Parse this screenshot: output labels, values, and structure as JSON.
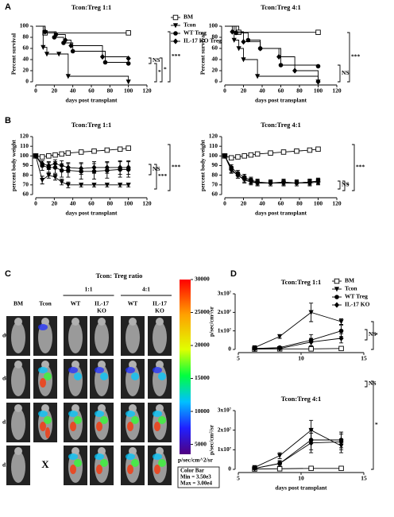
{
  "panels": [
    "A",
    "B",
    "C",
    "D"
  ],
  "chart_data": [
    {
      "type": "step",
      "title": "Tcon:Treg 1:1",
      "xlabel": "days post transplant",
      "ylabel": "Percent survival",
      "xlim": [
        0,
        120
      ],
      "xticks": [
        0,
        20,
        40,
        60,
        80,
        100,
        120
      ],
      "ylim": [
        0,
        100
      ],
      "yticks": [
        0,
        20,
        40,
        60,
        80,
        100
      ],
      "legend": "right",
      "series": [
        {
          "name": "BM",
          "color": "#000",
          "marker": "square-open",
          "x": [
            0,
            10,
            100
          ],
          "values": [
            100,
            88,
            88
          ]
        },
        {
          "name": "Tcon",
          "color": "#000",
          "marker": "triangle-down",
          "x": [
            0,
            8,
            12,
            25,
            35,
            100
          ],
          "values": [
            100,
            62,
            50,
            50,
            10,
            0
          ]
        },
        {
          "name": "WT Treg",
          "color": "#000",
          "marker": "circle",
          "x": [
            0,
            10,
            20,
            30,
            40,
            75,
            100
          ],
          "values": [
            100,
            90,
            80,
            70,
            55,
            35,
            33
          ]
        },
        {
          "name": "IL-17 KO Treg",
          "color": "#000",
          "marker": "diamond",
          "x": [
            0,
            10,
            22,
            32,
            38,
            72,
            100
          ],
          "values": [
            100,
            90,
            85,
            75,
            65,
            45,
            42
          ]
        }
      ],
      "annotations": [
        "NS",
        "*",
        "*",
        "***"
      ]
    },
    {
      "type": "step",
      "title": "Tcon:Treg 4:1",
      "xlabel": "days post transplant",
      "ylabel": "Percent survival",
      "xlim": [
        0,
        120
      ],
      "xticks": [
        0,
        20,
        40,
        60,
        80,
        100,
        120
      ],
      "ylim": [
        0,
        100
      ],
      "yticks": [
        0,
        20,
        40,
        60,
        80,
        100
      ],
      "series": [
        {
          "color": "#000",
          "marker": "square-open",
          "x": [
            0,
            15,
            100
          ],
          "values": [
            100,
            89,
            89
          ]
        },
        {
          "color": "#000",
          "marker": "triangle-down",
          "x": [
            0,
            10,
            15,
            20,
            35,
            100
          ],
          "values": [
            100,
            75,
            60,
            40,
            10,
            0
          ]
        },
        {
          "color": "#000",
          "marker": "circle",
          "x": [
            0,
            12,
            25,
            38,
            60,
            100
          ],
          "values": [
            100,
            88,
            75,
            60,
            30,
            28
          ]
        },
        {
          "color": "#000",
          "marker": "diamond",
          "x": [
            0,
            8,
            20,
            38,
            58,
            75,
            100
          ],
          "values": [
            100,
            90,
            72,
            60,
            45,
            20,
            0
          ]
        }
      ],
      "annotations": [
        "NS",
        "***"
      ]
    },
    {
      "type": "line",
      "title": "Tcon:Treg 1:1",
      "xlabel": "days post transplant",
      "ylabel": "percent body weight",
      "xlim": [
        0,
        120
      ],
      "xticks": [
        0,
        20,
        40,
        60,
        80,
        100,
        120
      ],
      "ylim": [
        60,
        120
      ],
      "yticks": [
        60,
        70,
        80,
        90,
        100,
        110,
        120
      ],
      "x": [
        0,
        7,
        14,
        21,
        28,
        35,
        49,
        63,
        77,
        91,
        100
      ],
      "series": [
        {
          "color": "#000",
          "marker": "square-open",
          "values": [
            100,
            99,
            100,
            101,
            102,
            103,
            104,
            105,
            106,
            107,
            108
          ],
          "errors": [
            0,
            1,
            1,
            1,
            1,
            2,
            2,
            2,
            2,
            2,
            2
          ]
        },
        {
          "color": "#000",
          "marker": "triangle-down",
          "values": [
            100,
            75,
            80,
            78,
            73,
            70,
            70,
            70,
            70,
            70,
            70
          ],
          "errors": [
            0,
            4,
            3,
            3,
            3,
            3,
            2,
            2,
            2,
            2,
            2
          ]
        },
        {
          "color": "#000",
          "marker": "circle",
          "values": [
            100,
            90,
            88,
            88,
            85,
            85,
            84,
            84,
            85,
            86,
            86
          ],
          "errors": [
            0,
            5,
            5,
            6,
            7,
            7,
            8,
            8,
            8,
            8,
            8
          ]
        },
        {
          "color": "#000",
          "marker": "diamond",
          "values": [
            100,
            92,
            90,
            92,
            90,
            88,
            87,
            88,
            88,
            88,
            88
          ],
          "errors": [
            0,
            3,
            4,
            4,
            5,
            5,
            6,
            6,
            6,
            7,
            7
          ]
        }
      ],
      "annotations": [
        "NS",
        "***",
        "***"
      ]
    },
    {
      "type": "line",
      "title": "Tcon:Treg 4:1",
      "xlabel": "days post transplant",
      "ylabel": "percent body weight",
      "xlim": [
        0,
        120
      ],
      "xticks": [
        0,
        20,
        40,
        60,
        80,
        100,
        120
      ],
      "ylim": [
        60,
        120
      ],
      "yticks": [
        60,
        70,
        80,
        90,
        100,
        110,
        120
      ],
      "x": [
        0,
        7,
        14,
        21,
        28,
        35,
        49,
        63,
        77,
        91,
        100
      ],
      "series": [
        {
          "color": "#000",
          "marker": "square-open",
          "values": [
            100,
            98,
            99,
            100,
            101,
            102,
            103,
            104,
            105,
            106,
            107
          ],
          "errors": [
            0,
            1,
            1,
            1,
            1,
            1,
            1,
            1,
            1,
            2,
            2
          ]
        },
        {
          "color": "#000",
          "marker": "triangle-down",
          "values": [
            100,
            85,
            80,
            75,
            73,
            72,
            72,
            72,
            72,
            73,
            74
          ],
          "errors": [
            0,
            3,
            3,
            3,
            3,
            3,
            3,
            3,
            3,
            3,
            3
          ]
        },
        {
          "color": "#000",
          "marker": "circle",
          "values": [
            100,
            88,
            82,
            78,
            75,
            73,
            72,
            73,
            72,
            73,
            74
          ],
          "errors": [
            0,
            3,
            3,
            3,
            3,
            3,
            3,
            3,
            3,
            3,
            3
          ]
        },
        {
          "color": "#000",
          "marker": "diamond",
          "values": [
            100,
            86,
            80,
            76,
            74,
            72,
            72,
            72,
            72,
            72,
            73
          ],
          "errors": [
            0,
            3,
            3,
            3,
            3,
            3,
            3,
            3,
            3,
            3,
            3
          ]
        }
      ],
      "annotations": [
        "NS",
        "*",
        "***"
      ]
    },
    {
      "type": "line",
      "title": "Tcon:Treg 1:1",
      "ylabel": "p/sec/cm²/sr",
      "xlim": [
        5,
        15
      ],
      "xticks": [
        5,
        10,
        15
      ],
      "ylim": [
        0,
        30000000
      ],
      "yticks": [
        0,
        {
          "value": 10000000,
          "label": "1x10⁷"
        },
        {
          "value": 20000000,
          "label": "2x10⁷"
        },
        {
          "value": 30000000,
          "label": "3x10⁷"
        }
      ],
      "legend": "right",
      "x": [
        6.3,
        8.3,
        10.8,
        13.2
      ],
      "series": [
        {
          "name": "BM",
          "color": "#000",
          "marker": "square-open",
          "values": [
            200000,
            300000,
            300000,
            500000
          ],
          "errors": [
            100000,
            100000,
            100000,
            200000
          ]
        },
        {
          "name": "Tcon",
          "color": "#000",
          "marker": "triangle-down",
          "values": [
            1000000,
            7000000,
            20000000,
            15000000
          ],
          "errors": [
            500000,
            1000000,
            5000000,
            1500000
          ]
        },
        {
          "name": "WT Treg",
          "color": "#000",
          "marker": "circle",
          "values": [
            500000,
            1000000,
            5000000,
            10000000
          ],
          "errors": [
            300000,
            500000,
            3000000,
            3000000
          ]
        },
        {
          "name": "IL-17 KO",
          "color": "#000",
          "marker": "diamond",
          "values": [
            300000,
            500000,
            4000000,
            6000000
          ],
          "errors": [
            200000,
            400000,
            2000000,
            2500000
          ]
        }
      ],
      "annotations": [
        "NS",
        "*"
      ]
    },
    {
      "type": "line",
      "title": "Tcon:Treg 4:1",
      "xlabel": "days post transplant",
      "ylabel": "p/sec/cm²/sr",
      "xlim": [
        5,
        15
      ],
      "xticks": [
        5,
        10,
        15
      ],
      "ylim": [
        0,
        30000000
      ],
      "yticks": [
        0,
        {
          "value": 10000000,
          "label": "1x10⁷"
        },
        {
          "value": 20000000,
          "label": "2x10⁷"
        },
        {
          "value": 30000000,
          "label": "3x10⁷"
        }
      ],
      "x": [
        6.3,
        8.3,
        10.8,
        13.2
      ],
      "series": [
        {
          "color": "#000",
          "marker": "square-open",
          "values": [
            200000,
            300000,
            500000,
            500000
          ],
          "errors": [
            100000,
            100000,
            100000,
            100000
          ]
        },
        {
          "color": "#000",
          "marker": "triangle-down",
          "values": [
            1000000,
            7000000,
            20000000,
            12000000
          ],
          "errors": [
            500000,
            1500000,
            5000000,
            3500000
          ]
        },
        {
          "color": "#000",
          "marker": "circle",
          "values": [
            500000,
            3000000,
            15000000,
            15000000
          ],
          "errors": [
            300000,
            1500000,
            5000000,
            4000000
          ]
        },
        {
          "color": "#000",
          "marker": "diamond",
          "values": [
            500000,
            3000000,
            13500000,
            14000000
          ],
          "errors": [
            300000,
            1000000,
            5000000,
            4000000
          ]
        }
      ],
      "annotations": [
        "NS",
        "*"
      ]
    }
  ],
  "imaging": {
    "title": "Tcon: Treg ratio",
    "groups": [
      "1:1",
      "4:1"
    ],
    "columns": [
      [
        "BM"
      ],
      [
        "Tcon"
      ],
      [
        "WT"
      ],
      [
        "IL-17",
        "KO"
      ],
      [
        "WT"
      ],
      [
        "IL-17",
        "KO"
      ]
    ],
    "rows": [
      "d6",
      "d8",
      "d11",
      "d14"
    ],
    "missing": "X",
    "colorbar_range": [
      3500,
      30000
    ],
    "colorbar_ticks": [
      5000,
      10000,
      15000,
      20000,
      25000,
      30000
    ],
    "colorbar_label": "p/sec/cm^2/sr",
    "box": [
      "Color Bar",
      "Min = 3.50e3",
      "Max = 3.00e4"
    ]
  }
}
